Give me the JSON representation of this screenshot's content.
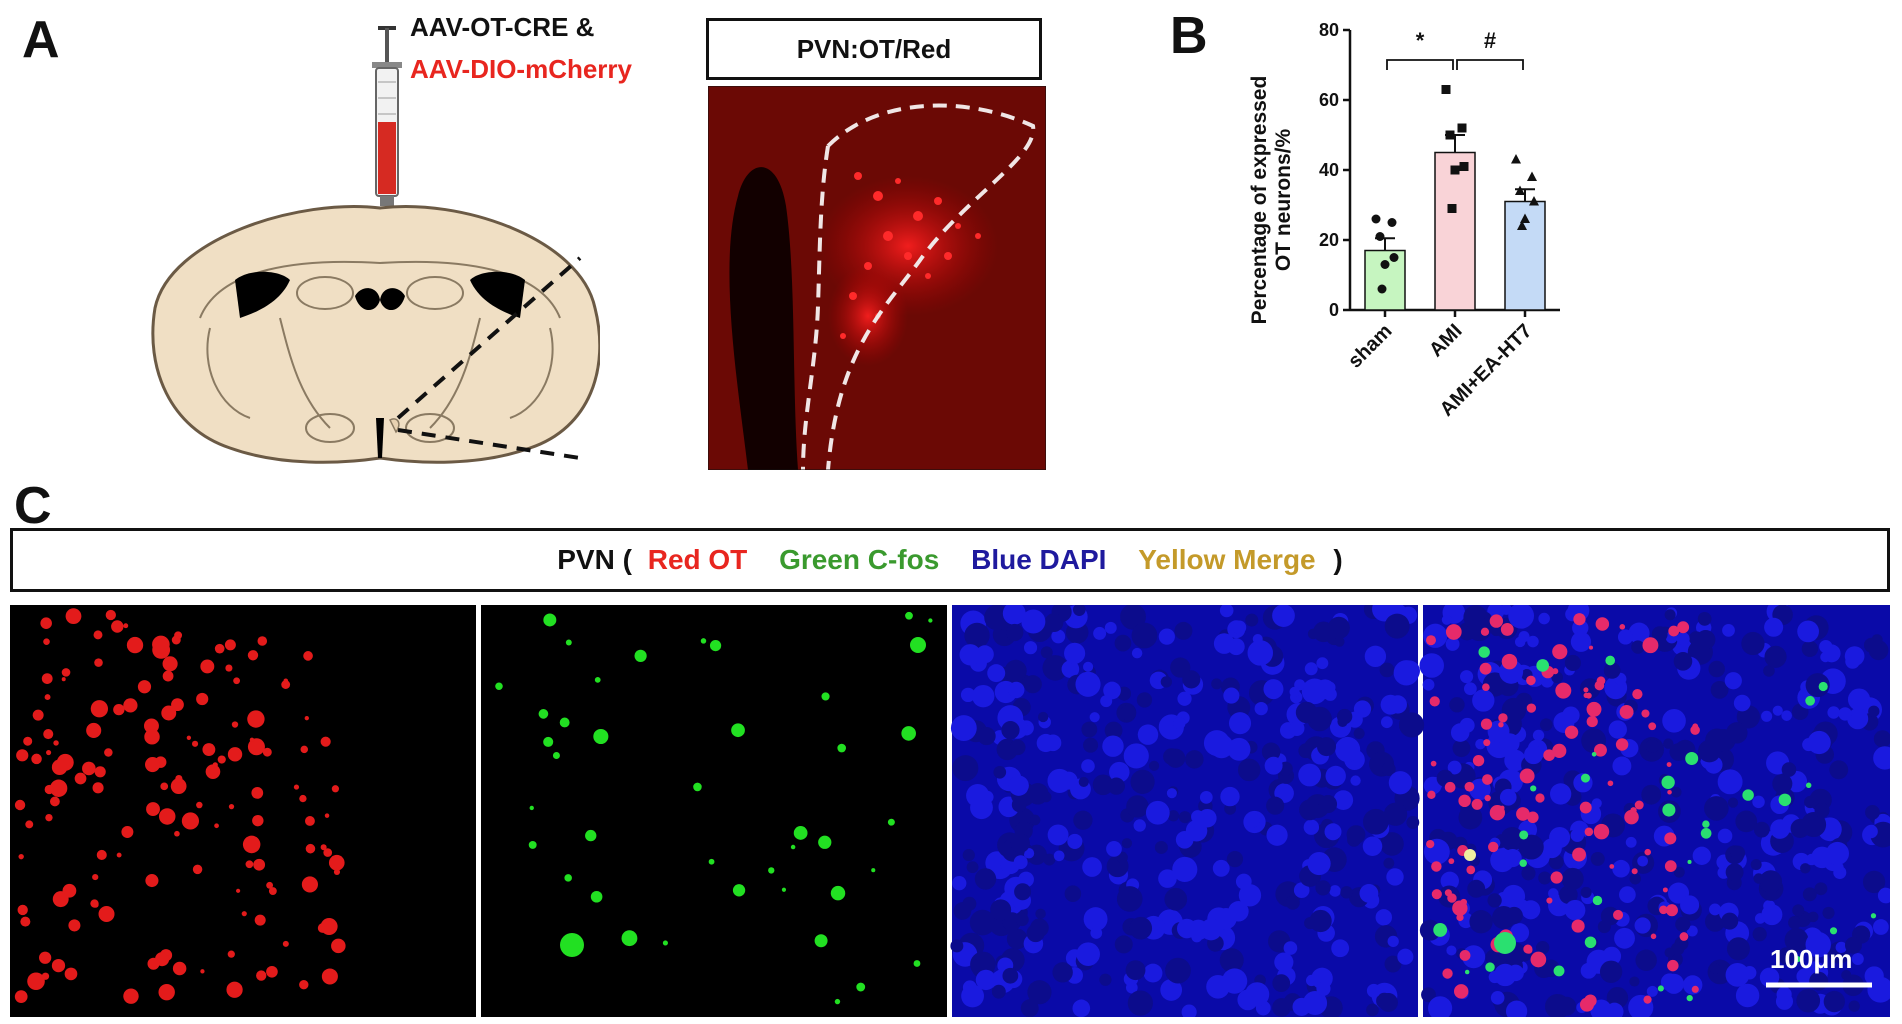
{
  "panel_a": {
    "letter": "A",
    "virus_line1": "AAV-OT-CRE &",
    "virus_line2": "AAV-DIO-mCherry",
    "inset_title": "PVN:OT/Red",
    "colors": {
      "red_label": "#e8261f",
      "brain_fill": "#f0dfc4",
      "ventricle": "#000000"
    },
    "icons": [
      "syringe-icon",
      "brain-section-icon"
    ]
  },
  "panel_b": {
    "letter": "B"
  },
  "chart_data": {
    "type": "bar",
    "categories": [
      "sham",
      "AMI",
      "AMI+EA-HT7"
    ],
    "values": [
      17,
      45,
      31
    ],
    "errors": [
      3.5,
      5,
      3.5
    ],
    "ylabel_line1": "Percentage of expressed",
    "ylabel_line2": "OT neurons/%",
    "xlabel": "",
    "ylim": [
      0,
      80
    ],
    "yticks": [
      0,
      20,
      40,
      60,
      80
    ],
    "bar_colors": [
      "#c6f5c0",
      "#f9d3d7",
      "#c4daf6"
    ],
    "points": [
      [
        26,
        25,
        21,
        15,
        13,
        6
      ],
      [
        63,
        52,
        50,
        41,
        40,
        29
      ],
      [
        43,
        38,
        34,
        31,
        26,
        24
      ]
    ],
    "markers": [
      "circle",
      "square",
      "triangle"
    ],
    "significance": [
      {
        "from": 0,
        "to": 1,
        "label": "*"
      },
      {
        "from": 1,
        "to": 2,
        "label": "#"
      }
    ]
  },
  "panel_c": {
    "letter": "C",
    "legend": {
      "prefix": "PVN (",
      "red": "Red OT",
      "green": "Green C-fos",
      "blue": "Blue DAPI",
      "yellow": "Yellow Merge",
      "suffix": ")",
      "colors": {
        "red": "#e8261f",
        "green": "#3a9a2e",
        "blue": "#1f1a9e",
        "yellow": "#c49a2a",
        "black": "#111111"
      }
    },
    "images": [
      "Red OT channel",
      "Green C-fos channel",
      "Blue DAPI channel",
      "Merge"
    ],
    "scale_bar": "100μm"
  }
}
